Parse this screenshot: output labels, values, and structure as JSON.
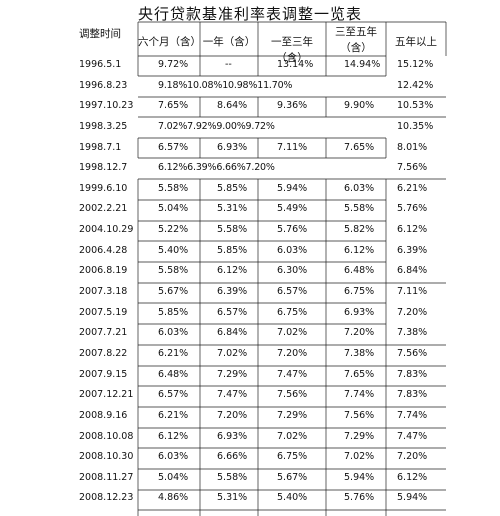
{
  "title": "央行贷款基准利率表调整一览表",
  "headers": {
    "date": "调整时间",
    "m6": "六个月（含）",
    "y1": "一年（含）",
    "y1to3": "一至三年（含）",
    "y3to5_line1": "三至五年",
    "y3to5_line2": "（含）",
    "y5plus": "五年以上"
  },
  "rows": [
    {
      "date": "1996.5.1",
      "cells": [
        "9.72%",
        "--",
        "13.14%",
        "14.94%",
        "15.12%"
      ]
    },
    {
      "date": "1996.8.23",
      "packed": "9.18%10.08%10.98%11.70%",
      "last": "12.42%"
    },
    {
      "date": "1997.10.23",
      "cells": [
        "7.65%",
        "8.64%",
        "9.36%",
        "9.90%",
        "10.53%"
      ]
    },
    {
      "date": "1998.3.25",
      "packed": "7.02%7.92%9.00%9.72%",
      "last": "10.35%"
    },
    {
      "date": "1998.7.1",
      "cells": [
        "6.57%",
        "6.93%",
        "7.11%",
        "7.65%",
        "8.01%"
      ]
    },
    {
      "date": "1998.12.7",
      "packed": "6.12%6.39%6.66%7.20%",
      "last": "7.56%"
    },
    {
      "date": "1999.6.10",
      "cells": [
        "5.58%",
        "5.85%",
        "5.94%",
        "6.03%",
        "6.21%"
      ]
    },
    {
      "date": "2002.2.21",
      "cells": [
        "5.04%",
        "5.31%",
        "5.49%",
        "5.58%",
        "5.76%"
      ]
    },
    {
      "date": "2004.10.29",
      "cells": [
        "5.22%",
        "5.58%",
        "5.76%",
        "5.82%",
        "6.12%"
      ]
    },
    {
      "date": "2006.4.28",
      "cells": [
        "5.40%",
        "5.85%",
        "6.03%",
        "6.12%",
        "6.39%"
      ]
    },
    {
      "date": "2006.8.19",
      "cells": [
        "5.58%",
        "6.12%",
        "6.30%",
        "6.48%",
        "6.84%"
      ]
    },
    {
      "date": "2007.3.18",
      "cells": [
        "5.67%",
        "6.39%",
        "6.57%",
        "6.75%",
        "7.11%"
      ]
    },
    {
      "date": "2007.5.19",
      "cells": [
        "5.85%",
        "6.57%",
        "6.75%",
        "6.93%",
        "7.20%"
      ]
    },
    {
      "date": "2007.7.21",
      "cells": [
        "6.03%",
        "6.84%",
        "7.02%",
        "7.20%",
        "7.38%"
      ]
    },
    {
      "date": "2007.8.22",
      "cells": [
        "6.21%",
        "7.02%",
        "7.20%",
        "7.38%",
        "7.56%"
      ]
    },
    {
      "date": "2007.9.15",
      "cells": [
        "6.48%",
        "7.29%",
        "7.47%",
        "7.65%",
        "7.83%"
      ]
    },
    {
      "date": "2007.12.21",
      "cells": [
        "6.57%",
        "7.47%",
        "7.56%",
        "7.74%",
        "7.83%"
      ]
    },
    {
      "date": "2008.9.16",
      "cells": [
        "6.21%",
        "7.20%",
        "7.29%",
        "7.56%",
        "7.74%"
      ]
    },
    {
      "date": "2008.10.08",
      "cells": [
        "6.12%",
        "6.93%",
        "7.02%",
        "7.29%",
        "7.47%"
      ]
    },
    {
      "date": "2008.10.30",
      "cells": [
        "6.03%",
        "6.66%",
        "6.75%",
        "7.02%",
        "7.20%"
      ]
    },
    {
      "date": "2008.11.27",
      "cells": [
        "5.04%",
        "5.58%",
        "5.67%",
        "5.94%",
        "6.12%"
      ]
    },
    {
      "date": "2008.12.23",
      "cells": [
        "4.86%",
        "5.31%",
        "5.40%",
        "5.76%",
        "5.94%"
      ]
    }
  ]
}
